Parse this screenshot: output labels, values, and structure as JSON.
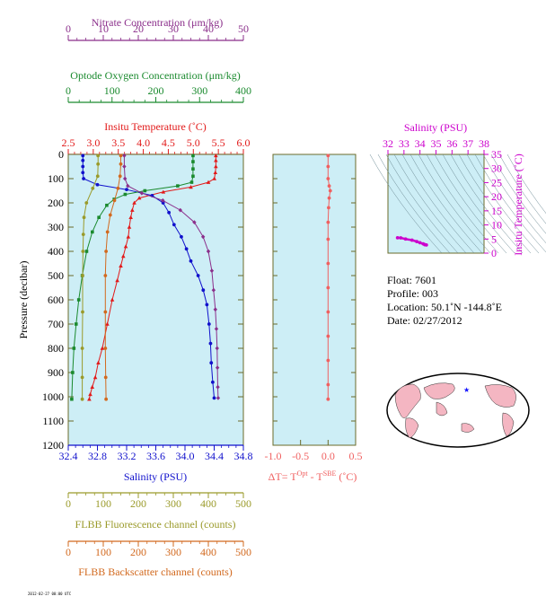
{
  "colors": {
    "nitrate": "#8b2f8b",
    "oxygen": "#1a8a2e",
    "temperature": "#e21a1a",
    "salinity": "#1010cc",
    "fluorescence": "#9a9a2a",
    "backscatter": "#d2691e",
    "delta": "#f06060",
    "ts": "#cc00cc",
    "plot_bg": "#cdeef6",
    "axis_frame": "#6b6b2a"
  },
  "axes": {
    "nitrate": {
      "title": "Nitrate Concentration (μm/kg)",
      "ticks": [
        "0",
        "10",
        "20",
        "30",
        "40",
        "50"
      ]
    },
    "oxygen": {
      "title": "Optode Oxygen Concentration (μm/kg)",
      "ticks": [
        "0",
        "100",
        "200",
        "300",
        "400"
      ]
    },
    "temperature": {
      "title": "Insitu Temperature (˚C)",
      "ticks": [
        "2.5",
        "3.0",
        "3.5",
        "4.0",
        "4.5",
        "5.0",
        "5.5",
        "6.0"
      ]
    },
    "pressure": {
      "title": "Pressure (decibar)",
      "ticks": [
        "0",
        "100",
        "200",
        "300",
        "400",
        "500",
        "600",
        "700",
        "800",
        "900",
        "1000",
        "1100",
        "1200"
      ]
    },
    "salinity": {
      "title": "Salinity (PSU)",
      "ticks": [
        "32.4",
        "32.8",
        "33.2",
        "33.6",
        "34.0",
        "34.4",
        "34.8"
      ]
    },
    "fluorescence": {
      "title": "FLBB Fluorescence channel (counts)",
      "ticks": [
        "0",
        "100",
        "200",
        "300",
        "400",
        "500"
      ]
    },
    "backscatter": {
      "title": "FLBB Backscatter channel (counts)",
      "ticks": [
        "0",
        "100",
        "200",
        "300",
        "400",
        "500"
      ]
    },
    "delta": {
      "title_prefix": "ΔT= T",
      "sup1": "Opt",
      "mid": " - T",
      "sup2": "SBE",
      "suffix": " (˚C)",
      "ticks": [
        "-1.0",
        "-0.5",
        "0.0",
        "0.5"
      ]
    },
    "ts_salinity": {
      "title": "Salinity (PSU)",
      "ticks": [
        "32",
        "33",
        "34",
        "35",
        "36",
        "37",
        "38"
      ]
    },
    "ts_temperature": {
      "title": "Insitu Temperature (˚C)",
      "ticks": [
        "0",
        "5",
        "10",
        "15",
        "20",
        "25",
        "30",
        "35"
      ]
    }
  },
  "info": {
    "float": "Float:  7601",
    "profile": "Profile:  003",
    "location": "Location:  50.1˚N  -144.8˚E",
    "date": "Date:  02/27/2012"
  },
  "footer_tiny": "2012-02-27 00:00 UTC",
  "chart_data": [
    {
      "type": "line",
      "name": "profile",
      "ylim": [
        1200,
        0
      ],
      "series": [
        {
          "key": "temperature",
          "marker": "triangle",
          "xlim": [
            2.5,
            6.0
          ],
          "x": [
            5.45,
            5.45,
            5.45,
            5.44,
            5.42,
            5.3,
            4.95,
            4.4,
            3.92,
            3.82,
            3.78,
            3.75,
            3.72,
            3.7,
            3.65,
            3.6,
            3.55,
            3.48,
            3.38,
            3.28,
            3.18,
            3.1,
            3.04,
            2.98,
            2.94,
            2.92
          ],
          "y": [
            5,
            25,
            50,
            75,
            100,
            115,
            135,
            155,
            180,
            200,
            230,
            260,
            300,
            340,
            380,
            420,
            460,
            520,
            600,
            700,
            800,
            860,
            920,
            960,
            990,
            1010
          ]
        },
        {
          "key": "salinity",
          "marker": "circle",
          "xlim": [
            32.4,
            34.8
          ],
          "x": [
            32.6,
            32.6,
            32.6,
            32.6,
            32.61,
            32.8,
            33.2,
            33.55,
            33.7,
            33.78,
            33.85,
            33.95,
            34.02,
            34.08,
            34.18,
            34.25,
            34.3,
            34.33,
            34.35,
            34.36,
            34.38,
            34.4
          ],
          "y": [
            5,
            25,
            50,
            75,
            100,
            125,
            145,
            170,
            200,
            240,
            290,
            340,
            390,
            440,
            500,
            560,
            620,
            700,
            780,
            860,
            940,
            1005
          ]
        },
        {
          "key": "oxygen",
          "marker": "square",
          "xlim": [
            0,
            400
          ],
          "x": [
            285,
            285,
            285,
            285,
            282,
            250,
            175,
            130,
            105,
            88,
            70,
            55,
            42,
            32,
            24,
            18,
            13,
            10,
            8
          ],
          "y": [
            5,
            30,
            60,
            90,
            115,
            130,
            150,
            165,
            185,
            210,
            260,
            320,
            400,
            500,
            600,
            700,
            800,
            900,
            1010
          ]
        },
        {
          "key": "nitrate",
          "marker": "diamond",
          "xlim": [
            0,
            50
          ],
          "x": [
            16,
            16,
            16.2,
            17,
            21,
            27,
            32,
            36,
            38.5,
            40,
            41,
            41.5,
            42,
            42.3,
            42.5,
            42.6,
            42.7,
            42.8
          ],
          "y": [
            5,
            50,
            100,
            130,
            160,
            190,
            230,
            280,
            340,
            400,
            480,
            560,
            640,
            720,
            800,
            880,
            960,
            1005
          ]
        },
        {
          "key": "fluorescence",
          "marker": "circle",
          "xlim": [
            0,
            500
          ],
          "x": [
            85,
            85,
            84,
            70,
            52,
            45,
            43,
            42,
            41,
            41,
            40,
            40,
            40
          ],
          "y": [
            5,
            40,
            90,
            140,
            200,
            260,
            330,
            400,
            500,
            650,
            800,
            920,
            1010
          ]
        },
        {
          "key": "backscatter",
          "marker": "circle",
          "xlim": [
            0,
            500
          ],
          "x": [
            150,
            150,
            148,
            142,
            132,
            120,
            112,
            108,
            106,
            106,
            106,
            107,
            108
          ],
          "y": [
            5,
            40,
            90,
            140,
            190,
            250,
            320,
            400,
            500,
            650,
            800,
            920,
            1010
          ]
        }
      ]
    },
    {
      "type": "line",
      "name": "delta_t",
      "xlim": [
        -1.0,
        0.5
      ],
      "ylim": [
        1200,
        0
      ],
      "x": [
        0.0,
        0.0,
        0.0,
        0.02,
        0.04,
        0.02,
        0.01,
        0.0,
        0.0,
        0.0,
        0.0,
        0.0,
        0.0,
        0.0,
        0.0,
        0.0
      ],
      "y": [
        5,
        50,
        100,
        130,
        150,
        180,
        220,
        280,
        350,
        450,
        550,
        650,
        750,
        850,
        950,
        1010
      ]
    },
    {
      "type": "scatter",
      "name": "ts_diagram",
      "xlim": [
        32,
        38
      ],
      "ylim": [
        0,
        35
      ],
      "x": [
        32.6,
        32.8,
        33.1,
        33.5,
        33.8,
        34.0,
        34.2,
        34.3,
        34.4
      ],
      "y": [
        5.45,
        5.4,
        5.0,
        4.6,
        4.1,
        3.7,
        3.3,
        3.0,
        2.9
      ]
    }
  ]
}
